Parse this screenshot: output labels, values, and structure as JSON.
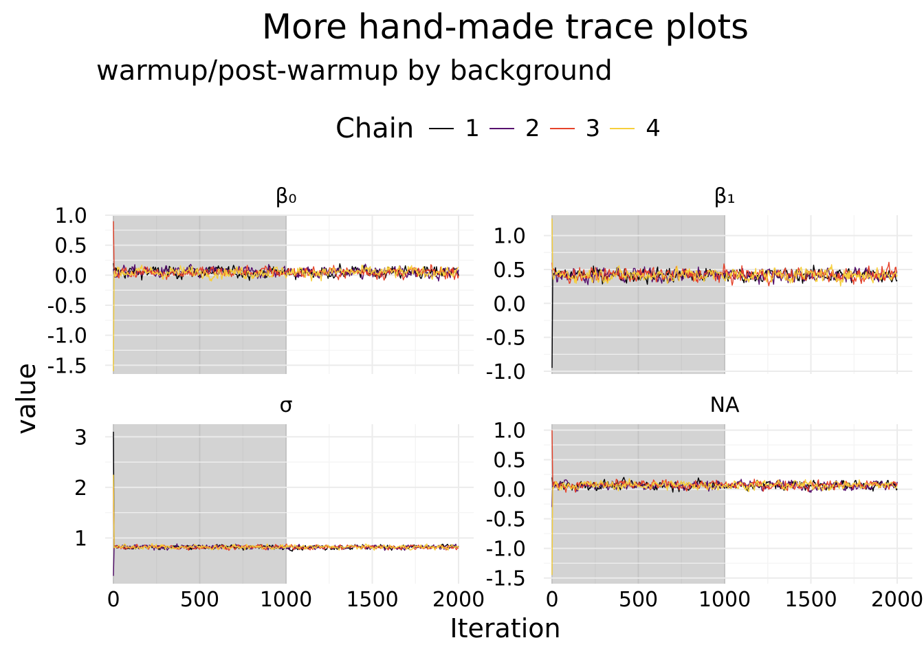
{
  "title": "More hand-made trace plots",
  "subtitle": "warmup/post-warmup by background",
  "legend": {
    "title": "Chain",
    "items": [
      {
        "label": "1",
        "color": "#000004"
      },
      {
        "label": "2",
        "color": "#56106E"
      },
      {
        "label": "3",
        "color": "#E5422A"
      },
      {
        "label": "4",
        "color": "#F6CF3B"
      }
    ]
  },
  "colors": {
    "warmup_background": "#d3d3d3",
    "grid": "#ebebeb"
  },
  "chart_data": [
    {
      "type": "line",
      "panel": "β₀",
      "xlabel": "Iteration",
      "ylabel": "value",
      "xlim": [
        0,
        2000
      ],
      "ylim": [
        -1.6,
        1.0
      ],
      "x_ticks": [
        "0",
        "500",
        "1000",
        "1500",
        "2000"
      ],
      "y_ticks": [
        "1.0",
        "0.5",
        "0.0",
        "-0.5",
        "-1.0",
        "-1.5"
      ],
      "warmup_range": [
        0,
        1000
      ],
      "series_summary": {
        "center": 0.05,
        "spread": 0.12
      },
      "initial_values": {
        "1": 0.2,
        "2": 0.1,
        "3": 0.9,
        "4": -1.6
      }
    },
    {
      "type": "line",
      "panel": "β₁",
      "xlabel": "Iteration",
      "ylabel": "value",
      "xlim": [
        0,
        2000
      ],
      "ylim": [
        -1.0,
        1.3
      ],
      "x_ticks": [
        "0",
        "500",
        "1000",
        "1500",
        "2000"
      ],
      "y_ticks": [
        "1.0",
        "0.5",
        "0.0",
        "-0.5",
        "-1.0"
      ],
      "warmup_range": [
        0,
        1000
      ],
      "series_summary": {
        "center": 0.42,
        "spread": 0.13
      },
      "initial_values": {
        "1": -0.95,
        "2": 0.5,
        "3": 0.6,
        "4": 1.25
      }
    },
    {
      "type": "line",
      "panel": "σ",
      "xlabel": "Iteration",
      "ylabel": "value",
      "xlim": [
        0,
        2000
      ],
      "ylim": [
        0.15,
        3.25
      ],
      "x_ticks": [
        "0",
        "500",
        "1000",
        "1500",
        "2000"
      ],
      "y_ticks": [
        "3",
        "2",
        "1"
      ],
      "warmup_range": [
        0,
        1000
      ],
      "series_summary": {
        "center": 0.82,
        "spread": 0.06
      },
      "initial_values": {
        "1": 3.1,
        "2": 0.25,
        "3": 2.0,
        "4": 2.25
      }
    },
    {
      "type": "line",
      "panel": "NA",
      "xlabel": "Iteration",
      "ylabel": "value",
      "xlim": [
        0,
        2000
      ],
      "ylim": [
        -1.55,
        1.1
      ],
      "x_ticks": [
        "0",
        "500",
        "1000",
        "1500",
        "2000"
      ],
      "y_ticks": [
        "1.0",
        "0.5",
        "0.0",
        "-0.5",
        "-1.0",
        "-1.5"
      ],
      "warmup_range": [
        0,
        1000
      ],
      "series_summary": {
        "center": 0.07,
        "spread": 0.1
      },
      "initial_values": {
        "1": 0.2,
        "2": -0.3,
        "3": 1.0,
        "4": -1.45
      }
    }
  ]
}
